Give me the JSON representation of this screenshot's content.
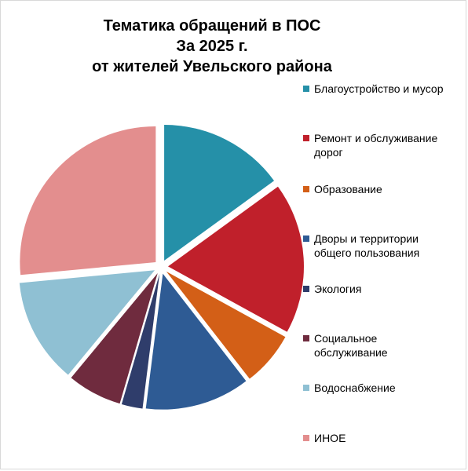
{
  "title": {
    "line1": "Тематика обращений в ПОС",
    "line2": "За 2025 г.",
    "line3": "от жителей Увельского района"
  },
  "chart_data": {
    "type": "pie",
    "title": "Тематика обращений в ПОС За 2025 г. от жителей Увельского района",
    "legend_position": "right",
    "exploded": true,
    "categories": [
      "Благоустройство и мусор",
      "Ремонт и обслуживание дорог",
      "Образование",
      "Дворы и территории общего пользования",
      "Экология",
      "Социальное обслуживание",
      "Водоснабжение",
      "ИНОЕ"
    ],
    "values": [
      15,
      18,
      6.5,
      12.5,
      2.5,
      6.5,
      12.5,
      26.5
    ],
    "colors": [
      "#2590a8",
      "#c0202b",
      "#d35f17",
      "#2e5b94",
      "#2f3d6b",
      "#6f2b3e",
      "#8fc0d3",
      "#e38e8e"
    ]
  },
  "legend": {
    "items": [
      {
        "label": "Благоустройство и мусор",
        "color": "#2590a8"
      },
      {
        "label": "Ремонт и обслуживание\nдорог",
        "color": "#c0202b"
      },
      {
        "label": "Образование",
        "color": "#d35f17"
      },
      {
        "label": "Дворы и территории\nобщего пользования",
        "color": "#2e5b94"
      },
      {
        "label": "Экология",
        "color": "#2f3d6b"
      },
      {
        "label": "Социальное\nобслуживание",
        "color": "#6f2b3e"
      },
      {
        "label": "Водоснабжение",
        "color": "#8fc0d3"
      },
      {
        "label": "ИНОЕ",
        "color": "#e38e8e"
      }
    ]
  }
}
